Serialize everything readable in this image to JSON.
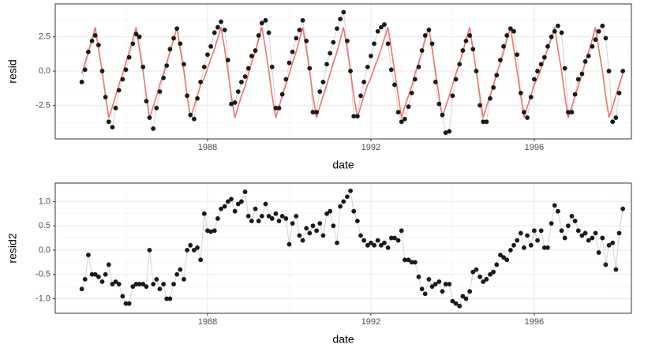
{
  "chart_data": [
    {
      "type": "line",
      "x_label": "date",
      "y_label": "resid",
      "x": [
        1984.92,
        1985.0,
        1985.08,
        1985.17,
        1985.25,
        1985.33,
        1985.42,
        1985.5,
        1985.58,
        1985.67,
        1985.75,
        1985.83,
        1985.92,
        1986.0,
        1986.08,
        1986.17,
        1986.25,
        1986.33,
        1986.42,
        1986.5,
        1986.58,
        1986.67,
        1986.75,
        1986.83,
        1986.92,
        1987.0,
        1987.08,
        1987.17,
        1987.25,
        1987.33,
        1987.42,
        1987.5,
        1987.58,
        1987.67,
        1987.75,
        1987.83,
        1987.92,
        1988.0,
        1988.08,
        1988.17,
        1988.25,
        1988.33,
        1988.42,
        1988.5,
        1988.58,
        1988.67,
        1988.75,
        1988.83,
        1988.92,
        1989.0,
        1989.08,
        1989.17,
        1989.25,
        1989.33,
        1989.42,
        1989.5,
        1989.58,
        1989.67,
        1989.75,
        1989.83,
        1989.92,
        1990.0,
        1990.08,
        1990.17,
        1990.25,
        1990.33,
        1990.42,
        1990.5,
        1990.58,
        1990.67,
        1990.75,
        1990.83,
        1990.92,
        1991.0,
        1991.08,
        1991.17,
        1991.25,
        1991.33,
        1991.42,
        1991.5,
        1991.58,
        1991.67,
        1991.75,
        1991.83,
        1991.92,
        1992.0,
        1992.08,
        1992.17,
        1992.25,
        1992.33,
        1992.42,
        1992.5,
        1992.58,
        1992.67,
        1992.75,
        1992.83,
        1992.92,
        1993.0,
        1993.08,
        1993.17,
        1993.25,
        1993.33,
        1993.42,
        1993.5,
        1993.58,
        1993.67,
        1993.75,
        1993.83,
        1993.92,
        1994.0,
        1994.08,
        1994.17,
        1994.25,
        1994.33,
        1994.42,
        1994.5,
        1994.58,
        1994.67,
        1994.75,
        1994.83,
        1994.92,
        1995.0,
        1995.08,
        1995.17,
        1995.25,
        1995.33,
        1995.42,
        1995.5,
        1995.58,
        1995.67,
        1995.75,
        1995.83,
        1995.92,
        1996.0,
        1996.08,
        1996.17,
        1996.25,
        1996.33,
        1996.42,
        1996.5,
        1996.58,
        1996.67,
        1996.75,
        1996.83,
        1996.92,
        1997.0,
        1997.08,
        1997.17,
        1997.25,
        1997.33,
        1997.42,
        1997.5,
        1997.58,
        1997.67,
        1997.75,
        1997.83,
        1997.92,
        1998.0,
        1998.08,
        1998.17
      ],
      "series": [
        {
          "color": "#1a1a1a",
          "line_color": "#d4d4d4",
          "markers": true,
          "values": [
            -0.8,
            0.1,
            1.4,
            2.2,
            2.6,
            1.9,
            0.0,
            -1.9,
            -3.7,
            -4.1,
            -2.7,
            -1.4,
            -0.6,
            0.1,
            1.0,
            2.0,
            2.7,
            2.5,
            0.3,
            -2.2,
            -3.4,
            -4.2,
            -2.7,
            -1.5,
            -0.5,
            0.4,
            1.6,
            2.4,
            3.1,
            2.0,
            0.5,
            -1.8,
            -3.2,
            -3.5,
            -2.0,
            -0.8,
            0.3,
            1.2,
            1.8,
            2.8,
            3.2,
            3.6,
            3.0,
            0.8,
            -2.4,
            -2.3,
            -1.5,
            -0.8,
            -0.4,
            0.2,
            1.1,
            1.5,
            2.6,
            3.5,
            3.7,
            2.8,
            0.3,
            -2.7,
            -2.7,
            -1.7,
            -0.6,
            0.6,
            1.4,
            2.4,
            3.0,
            3.7,
            2.2,
            0.2,
            -3.0,
            -3.0,
            -1.5,
            -0.8,
            0.5,
            1.3,
            2.1,
            3.1,
            3.8,
            4.3,
            2.2,
            0.0,
            -3.3,
            -3.3,
            -1.8,
            -0.8,
            0.3,
            1.1,
            2.0,
            2.9,
            3.2,
            3.4,
            2.0,
            0.1,
            -1.0,
            -3.0,
            -3.7,
            -3.5,
            -2.6,
            -1.6,
            -0.6,
            0.3,
            1.5,
            2.6,
            3.0,
            2.0,
            -0.8,
            -2.4,
            -3.2,
            -4.5,
            -4.4,
            -1.8,
            -0.6,
            0.5,
            1.5,
            2.2,
            2.6,
            1.6,
            0.0,
            -2.5,
            -3.7,
            -3.7,
            -2.0,
            -1.2,
            -0.3,
            0.8,
            1.8,
            2.6,
            3.1,
            2.9,
            1.2,
            -1.6,
            -3.0,
            -3.4,
            -1.9,
            -0.6,
            0.0,
            0.5,
            1.0,
            1.8,
            2.5,
            2.9,
            3.3,
            2.8,
            0.2,
            -3.0,
            -3.0,
            -1.7,
            -0.6,
            -0.2,
            0.7,
            1.1,
            1.8,
            2.3,
            2.9,
            3.3,
            2.4,
            0.0,
            -3.7,
            -3.4,
            -1.6,
            0.0
          ]
        },
        {
          "color": "#f07272",
          "markers": false,
          "values": [
            -0.2,
            0.6,
            1.4,
            2.3,
            3.2,
            1.6,
            0.0,
            -1.8,
            -3.4,
            -2.6,
            -1.8,
            -1.0,
            -0.2,
            0.6,
            1.4,
            2.3,
            3.2,
            1.6,
            0.0,
            -1.8,
            -3.4,
            -2.6,
            -1.8,
            -1.0,
            -0.2,
            0.6,
            1.4,
            2.3,
            3.2,
            1.6,
            0.0,
            -1.8,
            -3.4,
            -2.6,
            -1.8,
            -1.0,
            -0.5,
            0.2,
            0.9,
            1.6,
            2.4,
            3.2,
            1.6,
            0.0,
            -1.8,
            -3.4,
            -2.6,
            -1.8,
            -1.1,
            -0.2,
            0.6,
            1.4,
            2.3,
            3.2,
            1.6,
            0.0,
            -1.8,
            -3.4,
            -2.6,
            -1.8,
            -1.0,
            -0.2,
            0.6,
            1.4,
            2.3,
            3.2,
            1.6,
            0.0,
            -1.8,
            -3.4,
            -2.6,
            -1.8,
            -1.0,
            -0.2,
            0.6,
            1.4,
            2.3,
            3.2,
            1.6,
            0.0,
            -1.8,
            -3.4,
            -2.6,
            -1.8,
            -1.0,
            -0.5,
            0.2,
            0.9,
            1.6,
            2.4,
            3.2,
            1.6,
            0.0,
            -1.8,
            -3.4,
            -2.6,
            -1.8,
            -1.1,
            -0.2,
            0.6,
            1.4,
            2.3,
            3.2,
            1.6,
            0.0,
            -1.8,
            -3.4,
            -2.6,
            -1.8,
            -1.0,
            -0.2,
            0.6,
            1.4,
            2.3,
            3.2,
            1.6,
            0.0,
            -1.8,
            -3.4,
            -2.6,
            -1.8,
            -1.0,
            -0.2,
            0.6,
            1.4,
            2.3,
            3.2,
            1.6,
            0.0,
            -1.8,
            -3.4,
            -2.6,
            -1.8,
            -1.0,
            -0.5,
            0.2,
            0.9,
            1.6,
            2.4,
            3.2,
            1.6,
            0.0,
            -1.8,
            -3.4,
            -2.6,
            -1.8,
            -1.1,
            -0.2,
            0.6,
            1.4,
            2.3,
            3.2,
            1.6,
            0.0,
            -1.8,
            -3.4,
            -2.6,
            -1.8,
            -1.0,
            -0.2
          ]
        }
      ],
      "xlim": [
        1984.27,
        1998.38
      ],
      "xticks": [
        1988,
        1992,
        1996
      ],
      "minor_xticks": [
        1986,
        1990,
        1994,
        1998
      ],
      "ylim": [
        -4.95,
        4.9
      ],
      "yticks": [
        -2.5,
        {
          "value": 0,
          "label": "0.0"
        },
        2.5
      ],
      "minor_yticks": [
        -3.75,
        -1.25,
        1.25,
        3.75
      ],
      "grid": true
    },
    {
      "type": "line",
      "x_label": "date",
      "y_label": "resid2",
      "x": [
        1984.92,
        1985.0,
        1985.08,
        1985.17,
        1985.25,
        1985.33,
        1985.42,
        1985.5,
        1985.58,
        1985.67,
        1985.75,
        1985.83,
        1985.92,
        1986.0,
        1986.08,
        1986.17,
        1986.25,
        1986.33,
        1986.42,
        1986.5,
        1986.58,
        1986.67,
        1986.75,
        1986.83,
        1986.92,
        1987.0,
        1987.08,
        1987.17,
        1987.25,
        1987.33,
        1987.42,
        1987.5,
        1987.58,
        1987.67,
        1987.75,
        1987.83,
        1987.92,
        1988.0,
        1988.08,
        1988.17,
        1988.25,
        1988.33,
        1988.42,
        1988.5,
        1988.58,
        1988.67,
        1988.75,
        1988.83,
        1988.92,
        1989.0,
        1989.08,
        1989.17,
        1989.25,
        1989.33,
        1989.42,
        1989.5,
        1989.58,
        1989.67,
        1989.75,
        1989.83,
        1989.92,
        1990.0,
        1990.08,
        1990.17,
        1990.25,
        1990.33,
        1990.42,
        1990.5,
        1990.58,
        1990.67,
        1990.75,
        1990.83,
        1990.92,
        1991.0,
        1991.08,
        1991.17,
        1991.25,
        1991.33,
        1991.42,
        1991.5,
        1991.58,
        1991.67,
        1991.75,
        1991.83,
        1991.92,
        1992.0,
        1992.08,
        1992.17,
        1992.25,
        1992.33,
        1992.42,
        1992.5,
        1992.58,
        1992.67,
        1992.75,
        1992.83,
        1992.92,
        1993.0,
        1993.08,
        1993.17,
        1993.25,
        1993.33,
        1993.42,
        1993.5,
        1993.58,
        1993.67,
        1993.75,
        1993.83,
        1993.92,
        1994.0,
        1994.08,
        1994.17,
        1994.25,
        1994.33,
        1994.42,
        1994.5,
        1994.58,
        1994.67,
        1994.75,
        1994.83,
        1994.92,
        1995.0,
        1995.08,
        1995.17,
        1995.25,
        1995.33,
        1995.42,
        1995.5,
        1995.58,
        1995.67,
        1995.75,
        1995.83,
        1995.92,
        1996.0,
        1996.08,
        1996.17,
        1996.25,
        1996.33,
        1996.42,
        1996.5,
        1996.58,
        1996.67,
        1996.75,
        1996.83,
        1996.92,
        1997.0,
        1997.08,
        1997.17,
        1997.25,
        1997.33,
        1997.42,
        1997.5,
        1997.58,
        1997.67,
        1997.75,
        1997.83,
        1997.92,
        1998.0,
        1998.08,
        1998.17
      ],
      "series": [
        {
          "color": "#1a1a1a",
          "line_color": "#d4d4d4",
          "markers": true,
          "values": [
            -0.8,
            -0.6,
            -0.1,
            -0.5,
            -0.5,
            -0.55,
            -0.65,
            -0.5,
            -0.3,
            -0.7,
            -0.65,
            -0.7,
            -0.95,
            -1.1,
            -1.1,
            -0.75,
            -0.7,
            -0.7,
            -0.7,
            -0.75,
            0.0,
            -0.7,
            -0.6,
            -0.8,
            -0.7,
            -1.0,
            -1.0,
            -0.7,
            -0.5,
            -0.4,
            -0.6,
            0.0,
            0.1,
            0.0,
            0.05,
            -0.2,
            0.75,
            0.4,
            0.38,
            0.4,
            0.65,
            0.85,
            0.9,
            1.0,
            1.05,
            0.8,
            0.95,
            1.0,
            1.2,
            0.7,
            0.6,
            0.85,
            0.6,
            0.7,
            0.95,
            0.7,
            0.65,
            0.75,
            0.6,
            0.7,
            0.65,
            0.12,
            0.55,
            0.7,
            0.3,
            0.2,
            0.45,
            0.35,
            0.5,
            0.4,
            0.55,
            0.3,
            0.75,
            0.8,
            0.5,
            0.15,
            0.9,
            1.0,
            1.1,
            1.22,
            0.8,
            0.6,
            0.3,
            0.2,
            0.1,
            0.15,
            0.1,
            0.2,
            0.1,
            0.15,
            0.05,
            0.25,
            0.25,
            0.2,
            0.4,
            -0.2,
            -0.2,
            -0.25,
            -0.25,
            -0.55,
            -0.8,
            -0.9,
            -0.6,
            -0.75,
            -0.7,
            -0.65,
            -0.85,
            -0.7,
            -0.7,
            -1.05,
            -1.1,
            -1.15,
            -0.95,
            -1.0,
            -0.85,
            -0.45,
            -0.4,
            -0.55,
            -0.65,
            -0.6,
            -0.5,
            -0.45,
            -0.3,
            -0.1,
            -0.15,
            -0.2,
            0.0,
            0.1,
            0.2,
            0.35,
            0.05,
            0.3,
            0.1,
            0.4,
            0.2,
            0.4,
            0.05,
            0.05,
            0.55,
            0.92,
            0.8,
            0.4,
            0.25,
            0.5,
            0.7,
            0.6,
            0.4,
            0.3,
            0.35,
            0.2,
            0.25,
            0.35,
            -0.05,
            0.25,
            -0.3,
            0.1,
            0.15,
            -0.4,
            0.35,
            0.85
          ]
        }
      ],
      "xlim": [
        1984.27,
        1998.38
      ],
      "xticks": [
        1988,
        1992,
        1996
      ],
      "minor_xticks": [
        1986,
        1990,
        1994,
        1998
      ],
      "ylim": [
        -1.3,
        1.38
      ],
      "yticks": [
        {
          "value": -1,
          "label": "-1.0"
        },
        -0.5,
        {
          "value": 0,
          "label": "0.0"
        },
        0.5,
        {
          "value": 1,
          "label": "1.0"
        }
      ],
      "minor_yticks": [
        -1.25,
        -0.75,
        -0.25,
        0.25,
        0.75,
        1.25
      ],
      "grid": true
    }
  ]
}
